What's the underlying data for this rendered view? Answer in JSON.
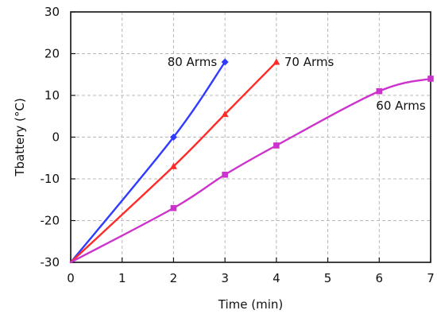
{
  "chart_data": {
    "type": "line",
    "xlabel": "Time (min)",
    "ylabel": "Tbattery (°C)",
    "xlim": [
      0,
      7
    ],
    "ylim": [
      -30,
      30
    ],
    "x_ticks": [
      0,
      1,
      2,
      3,
      4,
      5,
      6,
      7
    ],
    "y_ticks": [
      -30,
      -20,
      -10,
      0,
      10,
      20,
      30
    ],
    "grid": true,
    "legend": "none",
    "series": [
      {
        "name": "80 Arms",
        "color": "#2f3cff",
        "marker": "diamond",
        "x": [
          0,
          2,
          3
        ],
        "y": [
          -30,
          0,
          18
        ]
      },
      {
        "name": "70 Arms",
        "color": "#ff2b2b",
        "marker": "triangle",
        "x": [
          0,
          2,
          3,
          4
        ],
        "y": [
          -30,
          -7,
          5.5,
          18
        ]
      },
      {
        "name": "60 Arms",
        "color": "#cc33cc",
        "marker": "square",
        "x": [
          0,
          2,
          3,
          4,
          6,
          7
        ],
        "y": [
          -30,
          -17,
          -9,
          -2,
          11,
          14
        ]
      }
    ]
  }
}
